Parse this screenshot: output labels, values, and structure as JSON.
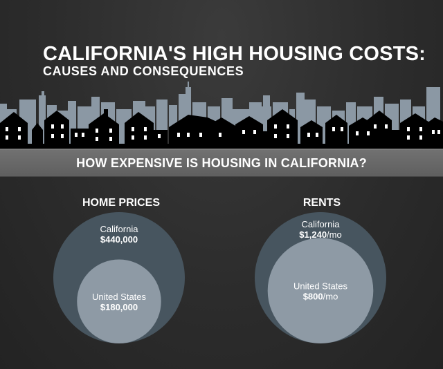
{
  "header": {
    "title": "CALIFORNIA'S HIGH HOUSING COSTS:",
    "subtitle": "CAUSES AND CONSEQUENCES"
  },
  "banner": {
    "text": "HOW EXPENSIVE IS HOUSING IN CALIFORNIA?"
  },
  "colors": {
    "background": "#2b2b2b",
    "outer_circle": "#47555f",
    "inner_circle": "#8e9aa5",
    "banner": "#686868",
    "skyline_back": "#8b98a4",
    "skyline_front": "#000000"
  },
  "icons": [
    "city-skyline-icon"
  ],
  "chart_data": [
    {
      "type": "bubble",
      "title": "HOME PRICES",
      "series": [
        {
          "name": "California",
          "value": 440000,
          "label": "$440,000",
          "unit": ""
        },
        {
          "name": "United States",
          "value": 180000,
          "label": "$180,000",
          "unit": ""
        }
      ]
    },
    {
      "type": "bubble",
      "title": "RENTS",
      "series": [
        {
          "name": "California",
          "value": 1240,
          "label": "$1,240",
          "unit": "/mo"
        },
        {
          "name": "United States",
          "value": 800,
          "label": "$800",
          "unit": "/mo"
        }
      ]
    }
  ]
}
